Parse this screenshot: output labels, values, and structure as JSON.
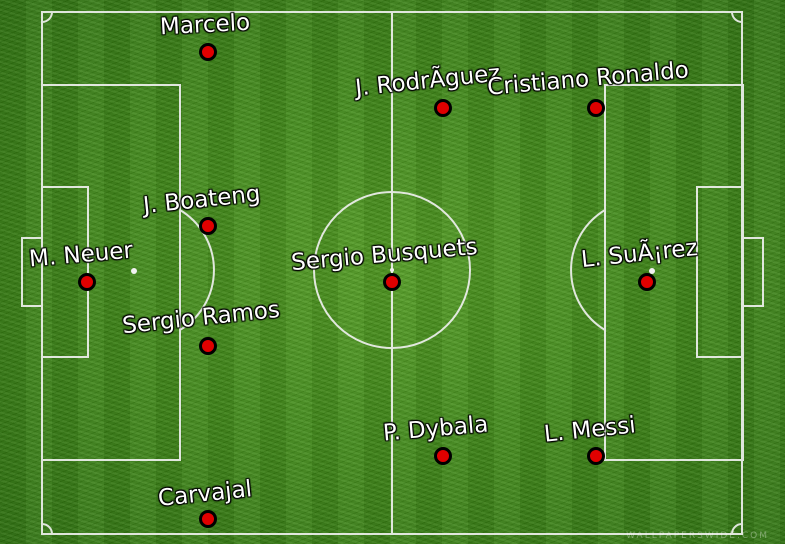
{
  "players": [
    {
      "name": "Marcelo"
    },
    {
      "name": "J. RodrÃ­guez"
    },
    {
      "name": "Cristiano Ronaldo"
    },
    {
      "name": "J. Boateng"
    },
    {
      "name": "M. Neuer"
    },
    {
      "name": "Sergio Busquets"
    },
    {
      "name": "L. SuÃ¡rez"
    },
    {
      "name": "Sergio Ramos"
    },
    {
      "name": "P. Dybala"
    },
    {
      "name": "L. Messi"
    },
    {
      "name": "Carvajal"
    }
  ],
  "watermark": "WALLPAPERSWIDE.COM",
  "colors": {
    "dot": "#e00000",
    "dot_border": "#000000",
    "lines": "#ffffff",
    "grass": "#3c8515"
  }
}
